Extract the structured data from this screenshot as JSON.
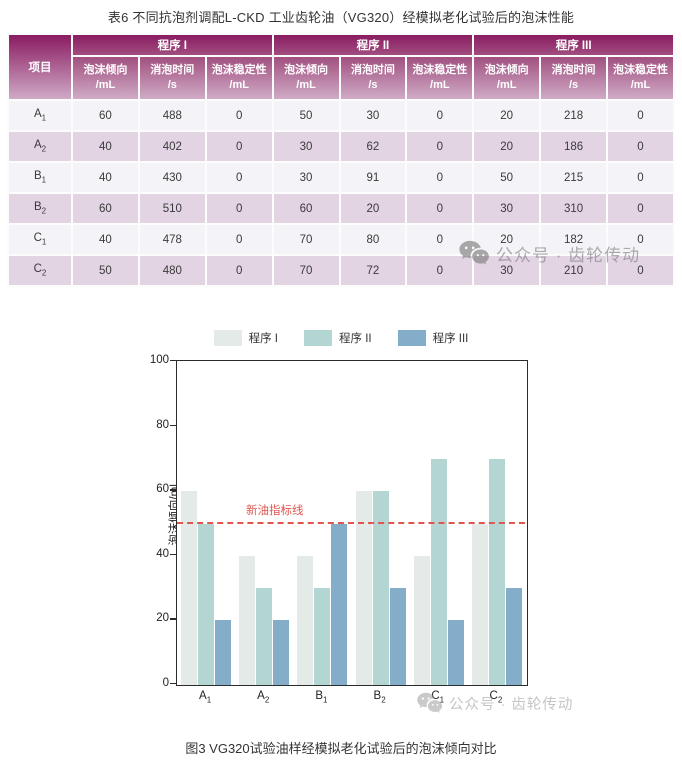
{
  "table": {
    "title": "表6 不同抗泡剂调配L-CKD 工业齿轮油（VG320）经模拟老化试验后的泡沫性能",
    "item_header": "项目",
    "groups": [
      {
        "label": "程序 I",
        "columns": [
          {
            "l1": "泡沫倾向",
            "l2": "/mL"
          },
          {
            "l1": "消泡时间",
            "l2": "/s"
          },
          {
            "l1": "泡沫稳定性",
            "l2": "/mL"
          }
        ]
      },
      {
        "label": "程序 II",
        "columns": [
          {
            "l1": "泡沫倾向",
            "l2": "/mL"
          },
          {
            "l1": "消泡时间",
            "l2": "/s"
          },
          {
            "l1": "泡沫稳定性",
            "l2": "/mL"
          }
        ]
      },
      {
        "label": "程序 III",
        "columns": [
          {
            "l1": "泡沫倾向",
            "l2": "/mL"
          },
          {
            "l1": "消泡时间",
            "l2": "/s"
          },
          {
            "l1": "泡沫稳定性",
            "l2": "/mL"
          }
        ]
      }
    ],
    "rows": [
      {
        "item": "A",
        "sub": "1",
        "values": [
          60,
          488,
          0,
          50,
          30,
          0,
          20,
          218,
          0
        ]
      },
      {
        "item": "A",
        "sub": "2",
        "values": [
          40,
          402,
          0,
          30,
          62,
          0,
          20,
          186,
          0
        ]
      },
      {
        "item": "B",
        "sub": "1",
        "values": [
          40,
          430,
          0,
          30,
          91,
          0,
          50,
          215,
          0
        ]
      },
      {
        "item": "B",
        "sub": "2",
        "values": [
          60,
          510,
          0,
          60,
          20,
          0,
          30,
          310,
          0
        ]
      },
      {
        "item": "C",
        "sub": "1",
        "values": [
          40,
          478,
          0,
          70,
          80,
          0,
          20,
          182,
          0
        ]
      },
      {
        "item": "C",
        "sub": "2",
        "values": [
          50,
          480,
          0,
          70,
          72,
          0,
          30,
          210,
          0
        ]
      }
    ]
  },
  "watermarks": {
    "table_watermark": "公众号 · 齿轮传动",
    "chart_watermark": "公众号 · 齿轮传动"
  },
  "chart_data": {
    "type": "bar",
    "title": "",
    "categories": [
      {
        "item": "A",
        "sub": "1"
      },
      {
        "item": "A",
        "sub": "2"
      },
      {
        "item": "B",
        "sub": "1"
      },
      {
        "item": "B",
        "sub": "2"
      },
      {
        "item": "C",
        "sub": "1"
      },
      {
        "item": "C",
        "sub": "2"
      }
    ],
    "series": [
      {
        "name": "程序 I",
        "color": "#e3eae8",
        "values": [
          60,
          40,
          40,
          60,
          40,
          50
        ]
      },
      {
        "name": "程序 II",
        "color": "#b4d6d3",
        "values": [
          50,
          30,
          30,
          60,
          70,
          70
        ]
      },
      {
        "name": "程序 III",
        "color": "#83adc9",
        "values": [
          20,
          20,
          50,
          30,
          20,
          30
        ]
      }
    ],
    "xlabel": "",
    "ylabel": "泡沫倾向/mL",
    "ylim": [
      0,
      100
    ],
    "yticks": [
      0,
      20,
      40,
      60,
      80,
      100
    ],
    "grid": false,
    "legend_position": "top",
    "reference_line": {
      "value": 50,
      "label": "新油指标线",
      "color": "#e0564f",
      "style": "dashed"
    }
  },
  "caption": "图3 VG320试验油样经模拟老化试验后的泡沫倾向对比",
  "colors": {
    "header_top": "#8a1c61",
    "header_bottom": "#cfaac6",
    "row_odd": "#f4f3f7",
    "row_even": "#e3d4e4",
    "reference_red": "#e0564f"
  }
}
